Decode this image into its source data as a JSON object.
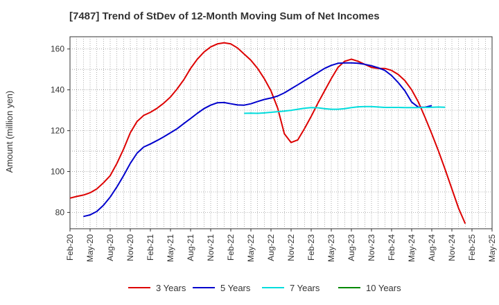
{
  "chart_data": {
    "type": "line",
    "title": "[7487]  Trend of StDev of 12-Month Moving Sum of Net Incomes",
    "xlabel": "",
    "ylabel": "Amount (million yen)",
    "ylim": [
      72,
      166
    ],
    "y_ticks": [
      80,
      100,
      120,
      140,
      160
    ],
    "x_ticks": [
      "Feb-20",
      "May-20",
      "Aug-20",
      "Nov-20",
      "Feb-21",
      "May-21",
      "Aug-21",
      "Nov-21",
      "Feb-22",
      "May-22",
      "Aug-22",
      "Nov-22",
      "Feb-23",
      "May-23",
      "Aug-23",
      "Nov-23",
      "Feb-24",
      "May-24",
      "Aug-24",
      "Nov-24",
      "Feb-25",
      "May-25"
    ],
    "grid": true,
    "legend_position": "bottom",
    "series": [
      {
        "name": "3 Years",
        "color": "#dd0000",
        "start": "Feb-20",
        "values": [
          87,
          87.8,
          88.5,
          89.6,
          91.5,
          94.5,
          98,
          104,
          111,
          119,
          124.5,
          127.5,
          129,
          131,
          133.5,
          136.5,
          140.5,
          145,
          150.5,
          155,
          158.5,
          161,
          162.5,
          163,
          162.5,
          160.5,
          157.5,
          154.5,
          150.5,
          145.5,
          139.5,
          131,
          118.5,
          114.2,
          115.5,
          121,
          127,
          133.5,
          139.5,
          145.5,
          151,
          154,
          155,
          154,
          152.5,
          151,
          150.5,
          150.5,
          149.5,
          147.5,
          144.5,
          140,
          134,
          126.5,
          118.5,
          110,
          101,
          91.5,
          82,
          74.5
        ]
      },
      {
        "name": "5 Years",
        "color": "#0000cc",
        "start": "Feb-20",
        "values": [
          null,
          null,
          78,
          78.8,
          80.5,
          83.5,
          87.5,
          92.5,
          98,
          104,
          109,
          112,
          113.5,
          115.2,
          117,
          119,
          121,
          123.5,
          126,
          128.5,
          130.8,
          132.5,
          133.7,
          133.8,
          133.2,
          132.6,
          132.5,
          133.2,
          134.3,
          135.3,
          136,
          137,
          138.5,
          140.5,
          142.5,
          144.5,
          146.5,
          148.5,
          150.5,
          152,
          153,
          153.2,
          153.2,
          153,
          152.5,
          151.8,
          150.8,
          149.5,
          147,
          143.5,
          139.5,
          134,
          131.5,
          131.5,
          132.3
        ]
      },
      {
        "name": "7 Years",
        "color": "#00dddd",
        "start": "Feb-20",
        "values": [
          null,
          null,
          null,
          null,
          null,
          null,
          null,
          null,
          null,
          null,
          null,
          null,
          null,
          null,
          null,
          null,
          null,
          null,
          null,
          null,
          null,
          null,
          null,
          null,
          null,
          null,
          128.5,
          128.6,
          128.5,
          128.7,
          129,
          129.3,
          129.6,
          130,
          130.5,
          131,
          131.3,
          131.2,
          130.8,
          130.5,
          130.5,
          130.8,
          131.3,
          131.7,
          131.8,
          131.8,
          131.6,
          131.4,
          131.4,
          131.4,
          131.3,
          131.3,
          131.3,
          131.4,
          131.5,
          131.6,
          131.5
        ]
      },
      {
        "name": "10 Years",
        "color": "#008800",
        "start": "Feb-20",
        "values": []
      }
    ]
  }
}
